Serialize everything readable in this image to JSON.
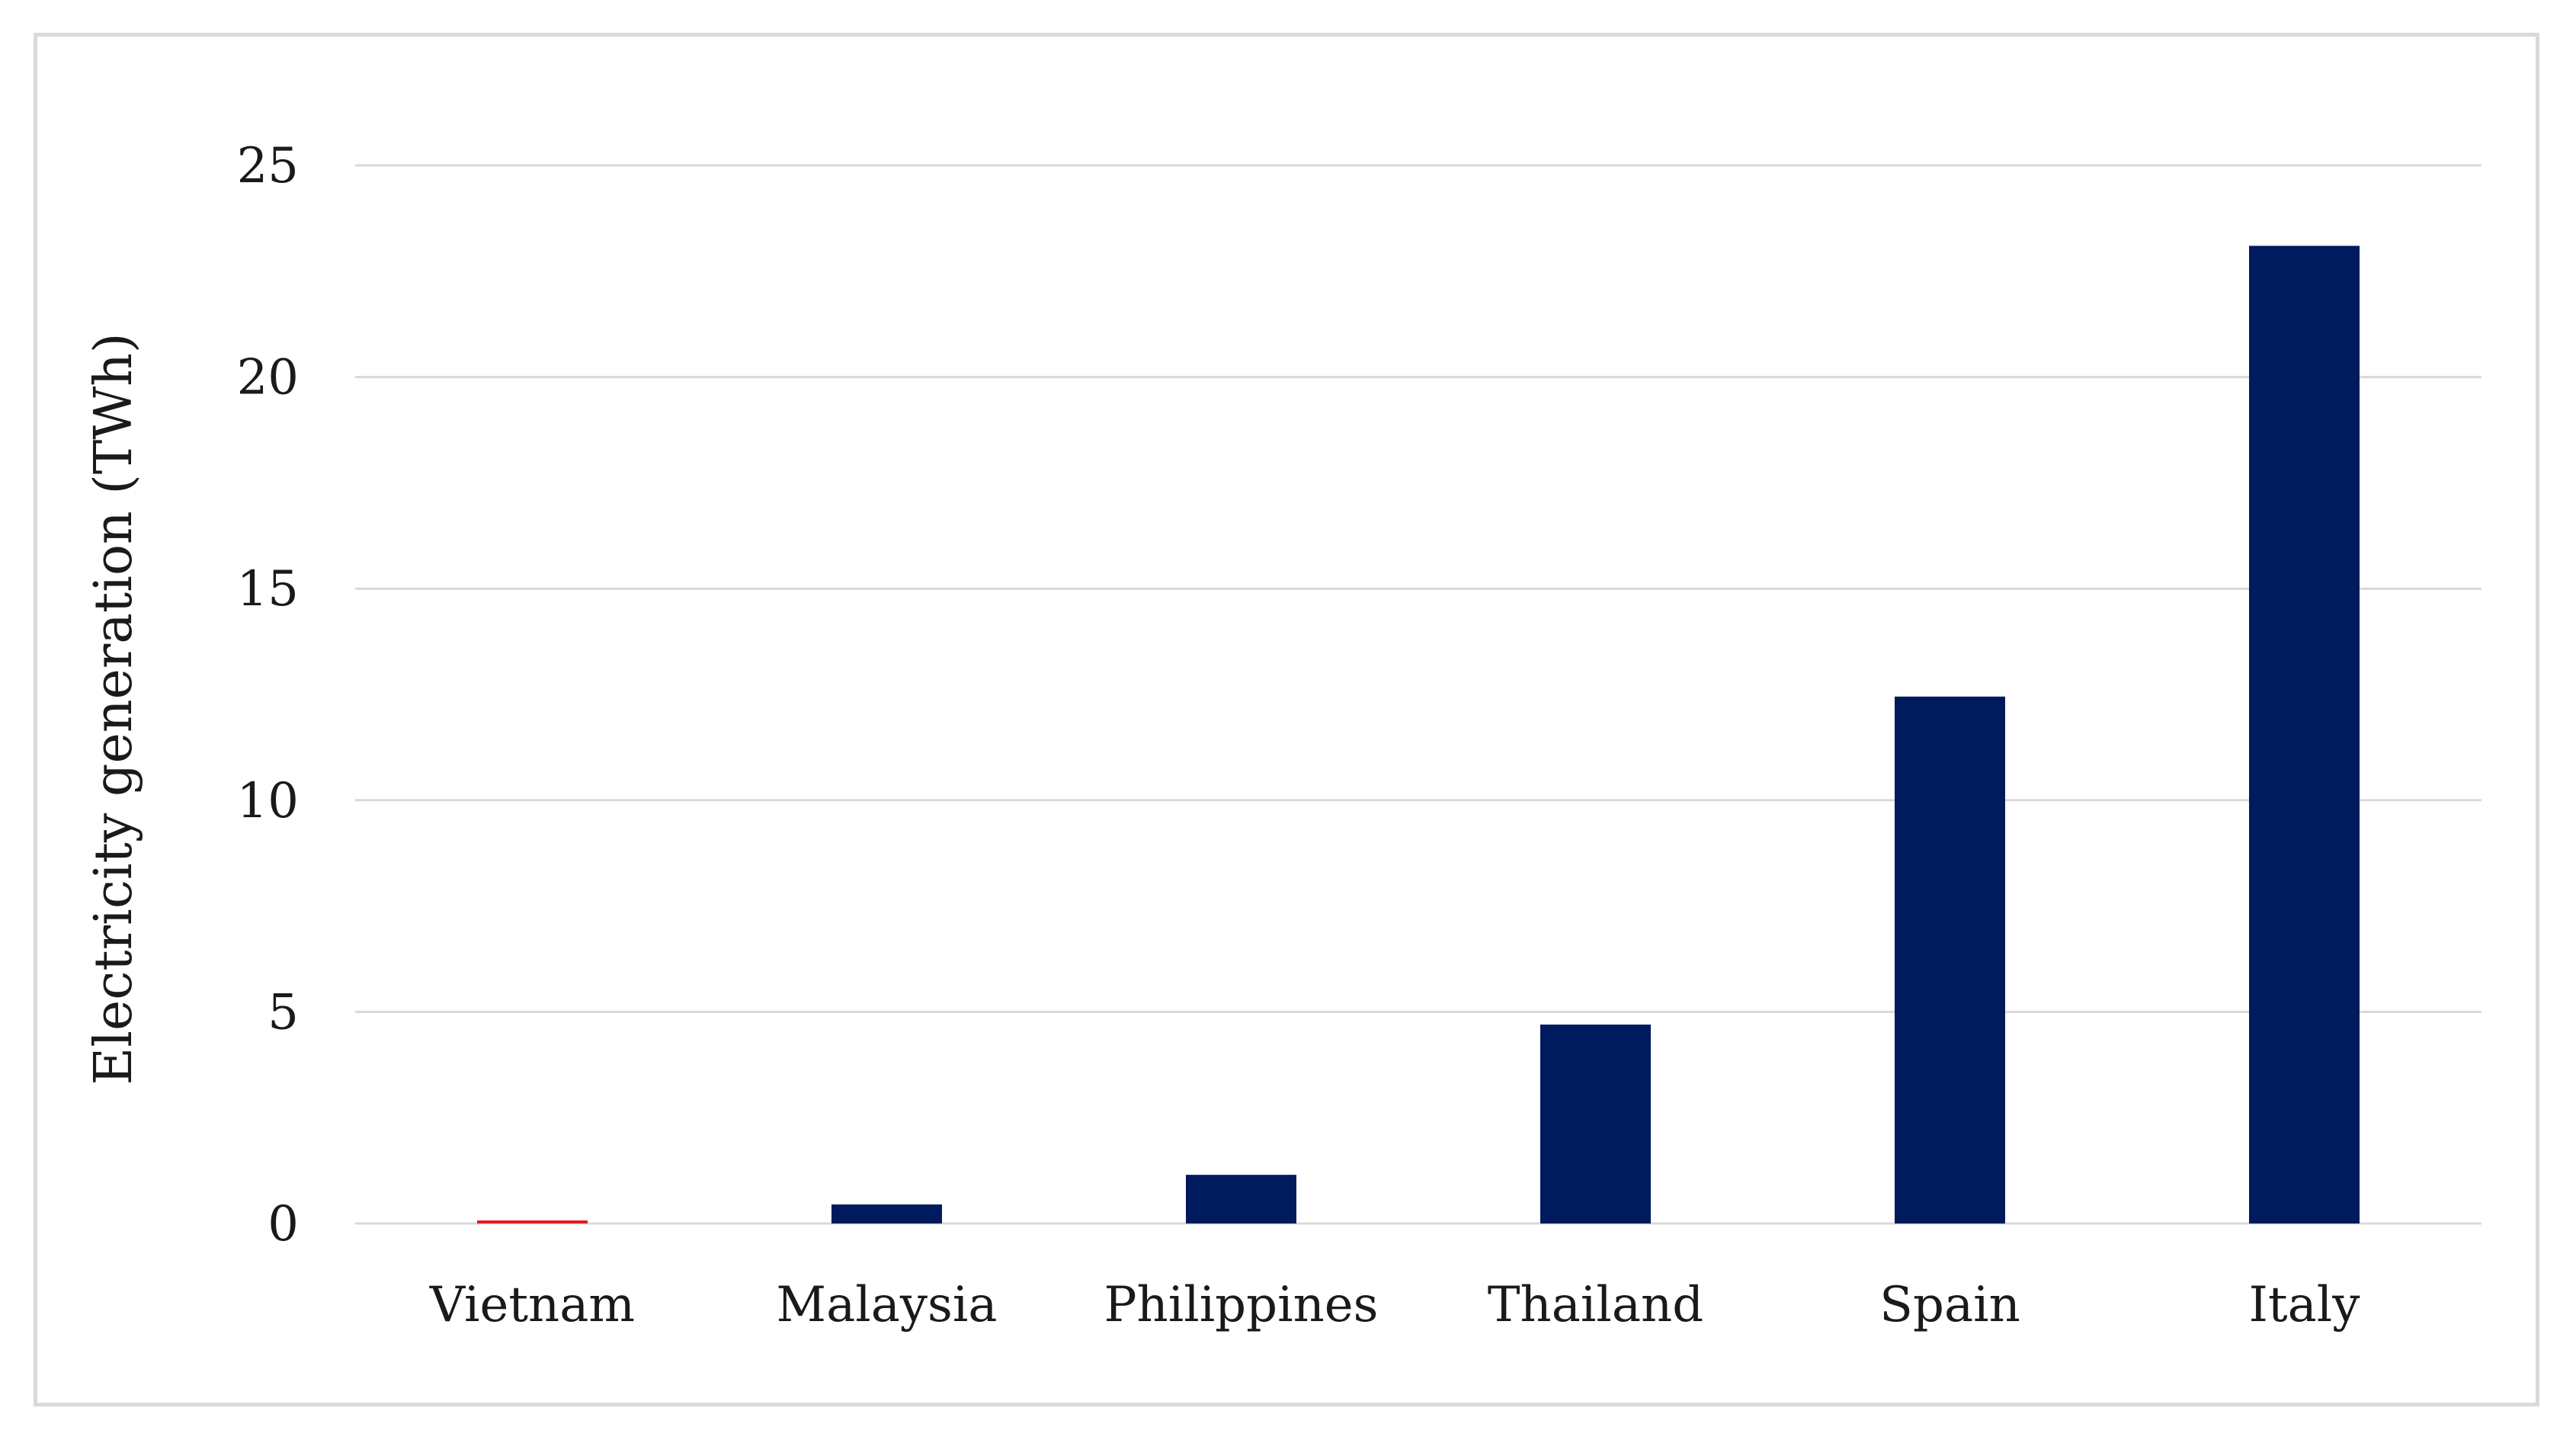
{
  "chart_data": {
    "type": "bar",
    "title": "",
    "xlabel": "",
    "ylabel": "Electricity generation (TWh)",
    "categories": [
      "Vietnam",
      "Malaysia",
      "Philippines",
      "Thailand",
      "Spain",
      "Italy"
    ],
    "values": [
      0.05,
      0.45,
      1.15,
      4.7,
      12.45,
      23.1
    ],
    "bar_colors": [
      "#e31a1c",
      "#001a5e",
      "#001a5e",
      "#001a5e",
      "#001a5e",
      "#001a5e"
    ],
    "ylim": [
      0,
      25
    ],
    "yticks": [
      0,
      5,
      10,
      15,
      20,
      25
    ],
    "grid": true,
    "gridline_color": "#d9d9d9",
    "legend": "none"
  }
}
